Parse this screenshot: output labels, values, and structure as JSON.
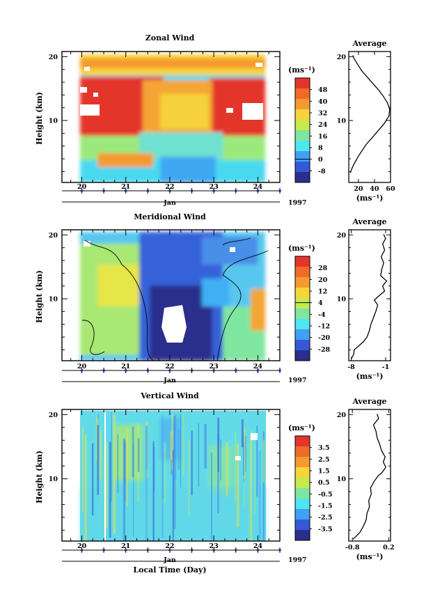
{
  "figure": {
    "xlabel": "Local Time (Day)",
    "month": "Jan",
    "year": "1997",
    "colorbar_unit": "(ms⁻¹)"
  },
  "chart_data": [
    {
      "type": "heatmap",
      "title": "Zonal Wind",
      "xlabel": "Local Time (Day)",
      "ylabel": "Height (km)",
      "x_ticks": [
        "20",
        "21",
        "22",
        "23",
        "24"
      ],
      "y_ticks": [
        "10",
        "20"
      ],
      "xlim": [
        19.55,
        24.5
      ],
      "ylim": [
        0.3,
        20.8
      ],
      "data_x_range": [
        19.95,
        24.15
      ],
      "data_y_range": [
        1.8,
        20.0
      ],
      "colorbar": {
        "labels": [
          "48",
          "40",
          "32",
          "24",
          "16",
          "8",
          "0",
          "-8"
        ],
        "range": [
          -12,
          52
        ]
      },
      "profile": {
        "title": "Average",
        "xlabel": "(ms⁻¹)",
        "x_ticks": [
          "20",
          "40",
          "60"
        ],
        "y_ticks": [
          "10",
          "20"
        ],
        "xlim": [
          8,
          60
        ],
        "ylim": [
          0.3,
          20.8
        ],
        "points": [
          [
            10,
            1.8
          ],
          [
            12,
            2.5
          ],
          [
            15,
            3.3
          ],
          [
            19,
            4.2
          ],
          [
            24,
            5.2
          ],
          [
            30,
            6.3
          ],
          [
            37,
            7.3
          ],
          [
            44,
            8.3
          ],
          [
            52,
            9.5
          ],
          [
            58,
            10.7
          ],
          [
            59,
            11.8
          ],
          [
            56,
            12.8
          ],
          [
            51,
            13.8
          ],
          [
            45,
            14.8
          ],
          [
            38,
            15.8
          ],
          [
            31,
            16.8
          ],
          [
            24,
            17.8
          ],
          [
            19,
            18.8
          ],
          [
            15,
            19.6
          ],
          [
            13,
            20.2
          ]
        ]
      }
    },
    {
      "type": "heatmap",
      "title": "Meridional Wind",
      "xlabel": "Local Time (Day)",
      "ylabel": "Height (km)",
      "x_ticks": [
        "20",
        "21",
        "22",
        "23",
        "24"
      ],
      "y_ticks": [
        "10",
        "20"
      ],
      "xlim": [
        19.55,
        24.5
      ],
      "ylim": [
        0.3,
        20.8
      ],
      "data_x_range": [
        19.95,
        24.15
      ],
      "data_y_range": [
        0.3,
        20.0
      ],
      "colorbar": {
        "labels": [
          "28",
          "20",
          "12",
          "4",
          "-4",
          "-12",
          "-20",
          "-28"
        ],
        "range": [
          -32,
          32
        ]
      },
      "profile": {
        "title": "Average",
        "xlabel": "(ms⁻¹)",
        "x_ticks": [
          "-8",
          "-1"
        ],
        "y_ticks": [
          "10",
          "20"
        ],
        "xlim": [
          -8.5,
          0
        ],
        "ylim": [
          0.3,
          20.8
        ],
        "points": [
          [
            -8,
            0.6
          ],
          [
            -7.5,
            1.3
          ],
          [
            -7.4,
            2.0
          ],
          [
            -6.5,
            2.6
          ],
          [
            -5.5,
            3.3
          ],
          [
            -4.8,
            4.0
          ],
          [
            -4.3,
            5.0
          ],
          [
            -4.0,
            6.0
          ],
          [
            -3.5,
            7.0
          ],
          [
            -3.0,
            8.0
          ],
          [
            -2.6,
            9.0
          ],
          [
            -3.3,
            9.8
          ],
          [
            -2.3,
            10.5
          ],
          [
            -1.2,
            11.2
          ],
          [
            -1.6,
            12.0
          ],
          [
            -0.8,
            12.8
          ],
          [
            -2.0,
            13.6
          ],
          [
            -1.8,
            14.6
          ],
          [
            -1.4,
            15.6
          ],
          [
            -1.9,
            16.6
          ],
          [
            -1.2,
            17.6
          ],
          [
            -1.6,
            18.6
          ],
          [
            -1.0,
            19.4
          ],
          [
            -1.4,
            20.1
          ]
        ]
      }
    },
    {
      "type": "heatmap",
      "title": "Vertical Wind",
      "xlabel": "Local Time (Day)",
      "ylabel": "Height (km)",
      "x_ticks": [
        "20",
        "21",
        "22",
        "23",
        "24"
      ],
      "y_ticks": [
        "10",
        "20"
      ],
      "xlim": [
        19.55,
        24.5
      ],
      "ylim": [
        0.3,
        20.8
      ],
      "data_x_range": [
        19.95,
        24.1
      ],
      "data_y_range": [
        0.3,
        20.0
      ],
      "colorbar": {
        "labels": [
          "3.5",
          "2.5",
          "1.5",
          "0.5",
          "-0.5",
          "-1.5",
          "-2.5",
          "-3.5"
        ],
        "range": [
          -4,
          4
        ]
      },
      "profile": {
        "title": "Average",
        "xlabel": "(ms⁻¹)",
        "x_ticks": [
          "-0.8",
          "0.2"
        ],
        "y_ticks": [
          "10",
          "20"
        ],
        "xlim": [
          -0.9,
          0.25
        ],
        "ylim": [
          0.3,
          20.8
        ],
        "points": [
          [
            -0.78,
            0.6
          ],
          [
            -0.6,
            1.6
          ],
          [
            -0.5,
            2.6
          ],
          [
            -0.42,
            3.6
          ],
          [
            -0.4,
            4.6
          ],
          [
            -0.33,
            5.6
          ],
          [
            -0.35,
            6.6
          ],
          [
            -0.28,
            7.6
          ],
          [
            -0.3,
            8.6
          ],
          [
            -0.2,
            9.6
          ],
          [
            -0.1,
            10.4
          ],
          [
            0.02,
            11.0
          ],
          [
            0.12,
            11.8
          ],
          [
            0.05,
            12.6
          ],
          [
            0.1,
            13.4
          ],
          [
            0.0,
            14.4
          ],
          [
            -0.05,
            15.4
          ],
          [
            -0.12,
            16.4
          ],
          [
            -0.15,
            17.4
          ],
          [
            -0.22,
            18.4
          ],
          [
            -0.08,
            19.4
          ],
          [
            -0.12,
            20.1
          ]
        ]
      }
    }
  ]
}
